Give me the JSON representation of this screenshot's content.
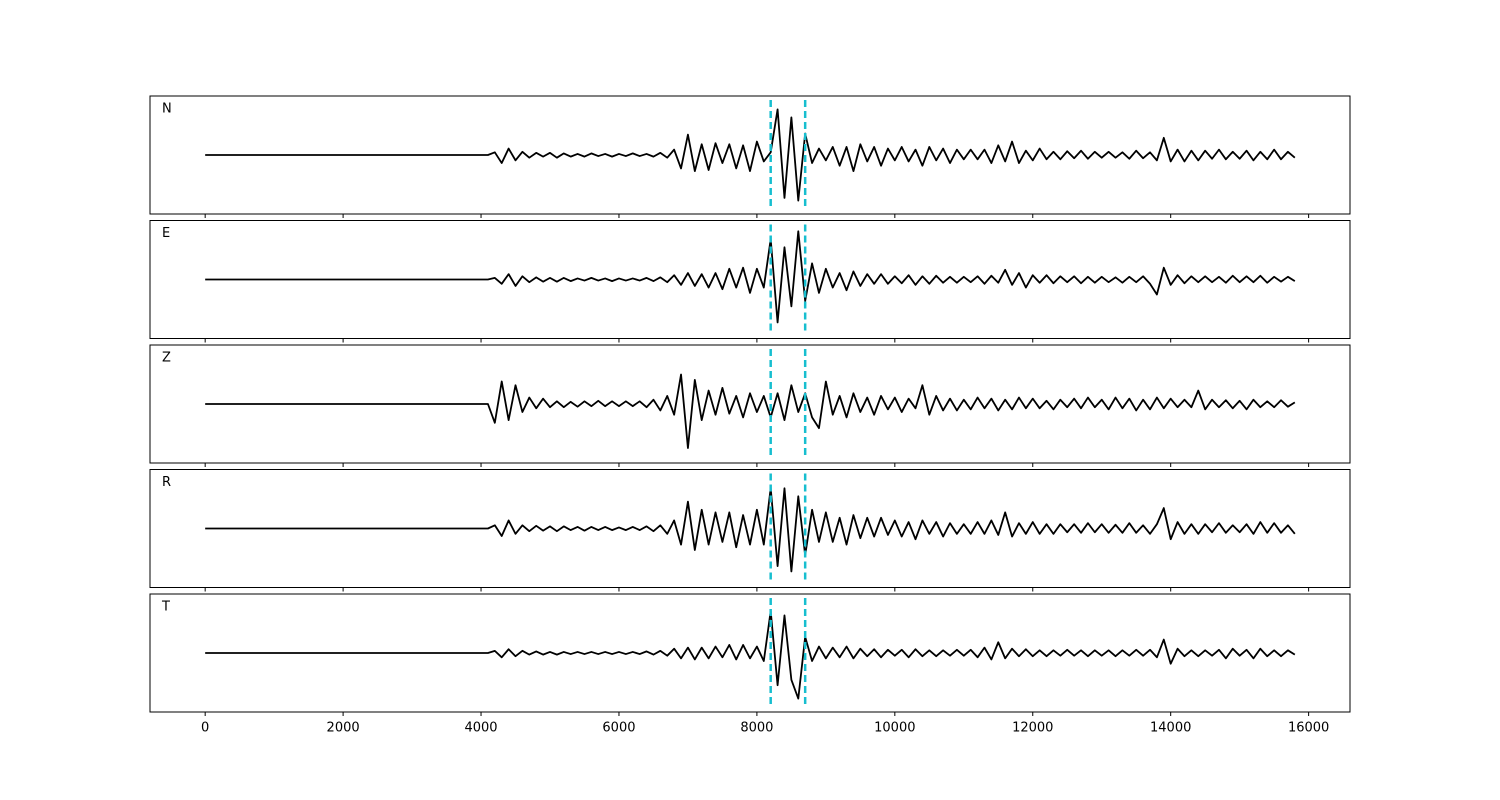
{
  "chart_data": {
    "type": "line",
    "layout": "stacked",
    "xlim": [
      -800,
      16600
    ],
    "xticks": [
      0,
      2000,
      4000,
      6000,
      8000,
      10000,
      12000,
      14000,
      16000
    ],
    "ylim": [
      -1.1,
      1.1
    ],
    "vlines": [
      8200,
      8700
    ],
    "vline_color": "#17becf",
    "x": [
      0,
      4000,
      4100,
      4200,
      4300,
      4400,
      4500,
      4600,
      4700,
      4800,
      4900,
      5000,
      5100,
      5200,
      5300,
      5400,
      5500,
      5600,
      5700,
      5800,
      5900,
      6000,
      6100,
      6200,
      6300,
      6400,
      6500,
      6600,
      6700,
      6800,
      6900,
      7000,
      7100,
      7200,
      7300,
      7400,
      7500,
      7600,
      7700,
      7800,
      7900,
      8000,
      8100,
      8200,
      8300,
      8400,
      8500,
      8600,
      8700,
      8800,
      8900,
      9000,
      9100,
      9200,
      9300,
      9400,
      9500,
      9600,
      9700,
      9800,
      9900,
      10000,
      10100,
      10200,
      10300,
      10400,
      10500,
      10600,
      10700,
      10800,
      10900,
      11000,
      11100,
      11200,
      11300,
      11400,
      11500,
      11600,
      11700,
      11800,
      11900,
      12000,
      12100,
      12200,
      12300,
      12400,
      12500,
      12600,
      12700,
      12800,
      12900,
      13000,
      13100,
      13200,
      13300,
      13400,
      13500,
      13600,
      13700,
      13800,
      13900,
      14000,
      14100,
      14200,
      14300,
      14400,
      14500,
      14600,
      14700,
      14800,
      14900,
      15000,
      15100,
      15200,
      15300,
      15400,
      15500,
      15600,
      15700,
      15800
    ],
    "series": [
      {
        "name": "N",
        "color": "#000000",
        "values": [
          0,
          0,
          0,
          0.05,
          -0.15,
          0.12,
          -0.1,
          0.06,
          -0.05,
          0.04,
          -0.03,
          0.04,
          -0.05,
          0.03,
          -0.03,
          0.02,
          -0.03,
          0.03,
          -0.02,
          0.02,
          -0.03,
          0.02,
          -0.02,
          0.03,
          -0.02,
          0.02,
          -0.03,
          0.04,
          -0.05,
          0.1,
          -0.25,
          0.38,
          -0.3,
          0.2,
          -0.28,
          0.22,
          -0.15,
          0.2,
          -0.25,
          0.18,
          -0.3,
          0.25,
          -0.12,
          0.05,
          0.85,
          -0.8,
          0.7,
          -0.85,
          0.4,
          -0.15,
          0.12,
          -0.1,
          0.15,
          -0.2,
          0.15,
          -0.3,
          0.2,
          -0.12,
          0.15,
          -0.2,
          0.12,
          -0.1,
          0.15,
          -0.12,
          0.1,
          -0.2,
          0.15,
          -0.1,
          0.12,
          -0.15,
          0.1,
          -0.08,
          0.1,
          -0.08,
          0.1,
          -0.15,
          0.18,
          -0.12,
          0.25,
          -0.15,
          0.08,
          -0.1,
          0.12,
          -0.08,
          0.06,
          -0.08,
          0.07,
          -0.06,
          0.08,
          -0.07,
          0.06,
          -0.05,
          0.06,
          -0.05,
          0.05,
          -0.07,
          0.08,
          -0.06,
          0.05,
          -0.1,
          0.32,
          -0.12,
          0.1,
          -0.12,
          0.08,
          -0.1,
          0.08,
          -0.07,
          0.1,
          -0.08,
          0.06,
          -0.07,
          0.08,
          -0.1,
          0.06,
          -0.08,
          0.1,
          -0.08,
          0.06,
          -0.05
        ]
      },
      {
        "name": "E",
        "color": "#000000",
        "values": [
          0,
          0,
          0,
          0.03,
          -0.08,
          0.1,
          -0.12,
          0.06,
          -0.05,
          0.04,
          -0.04,
          0.03,
          -0.04,
          0.03,
          -0.03,
          0.02,
          -0.02,
          0.03,
          -0.02,
          0.02,
          -0.03,
          0.02,
          -0.02,
          0.02,
          -0.02,
          0.03,
          -0.03,
          0.04,
          -0.05,
          0.08,
          -0.1,
          0.12,
          -0.12,
          0.1,
          -0.15,
          0.12,
          -0.18,
          0.2,
          -0.15,
          0.22,
          -0.25,
          0.2,
          -0.15,
          0.75,
          -0.8,
          0.6,
          -0.5,
          0.9,
          -0.4,
          0.3,
          -0.25,
          0.2,
          -0.15,
          0.12,
          -0.2,
          0.15,
          -0.12,
          0.1,
          -0.08,
          0.1,
          -0.08,
          0.06,
          -0.07,
          0.08,
          -0.1,
          0.06,
          -0.08,
          0.07,
          -0.06,
          0.05,
          -0.06,
          0.05,
          -0.05,
          0.06,
          -0.08,
          0.07,
          -0.06,
          0.18,
          -0.1,
          0.12,
          -0.15,
          0.08,
          -0.06,
          0.08,
          -0.07,
          0.06,
          -0.05,
          0.06,
          -0.07,
          0.05,
          -0.06,
          0.05,
          -0.05,
          0.04,
          -0.06,
          0.05,
          -0.05,
          0.06,
          -0.08,
          -0.28,
          0.22,
          -0.1,
          0.08,
          -0.07,
          0.06,
          -0.05,
          0.06,
          -0.05,
          0.05,
          -0.06,
          0.07,
          -0.05,
          0.06,
          -0.05,
          0.07,
          -0.06,
          0.05,
          -0.04,
          0.05,
          -0.03
        ]
      },
      {
        "name": "Z",
        "color": "#000000",
        "values": [
          0,
          0,
          0,
          -0.35,
          0.42,
          -0.3,
          0.35,
          -0.15,
          0.12,
          -0.08,
          0.1,
          -0.06,
          0.05,
          -0.06,
          0.04,
          -0.05,
          0.05,
          -0.04,
          0.06,
          -0.04,
          0.05,
          -0.04,
          0.05,
          -0.04,
          0.05,
          -0.06,
          0.08,
          -0.12,
          0.15,
          -0.2,
          0.55,
          -0.82,
          0.45,
          -0.3,
          0.25,
          -0.2,
          0.3,
          -0.18,
          0.15,
          -0.25,
          0.2,
          -0.15,
          0.15,
          -0.25,
          0.2,
          -0.3,
          0.35,
          -0.15,
          0.2,
          -0.25,
          -0.45,
          0.42,
          -0.2,
          0.15,
          -0.25,
          0.2,
          -0.15,
          0.12,
          -0.2,
          0.15,
          -0.1,
          0.12,
          -0.15,
          0.1,
          -0.08,
          0.35,
          -0.2,
          0.15,
          -0.12,
          0.1,
          -0.12,
          0.08,
          -0.1,
          0.12,
          -0.08,
          0.1,
          -0.12,
          0.08,
          -0.1,
          0.12,
          -0.08,
          0.1,
          -0.08,
          0.06,
          -0.1,
          0.08,
          -0.06,
          0.1,
          -0.08,
          0.12,
          -0.06,
          0.08,
          -0.1,
          0.12,
          -0.08,
          0.1,
          -0.12,
          0.08,
          -0.1,
          0.12,
          -0.08,
          0.1,
          -0.06,
          0.08,
          -0.06,
          0.25,
          -0.1,
          0.08,
          -0.06,
          0.07,
          -0.08,
          0.06,
          -0.1,
          0.08,
          -0.06,
          0.05,
          -0.06,
          0.07,
          -0.05,
          0.03
        ]
      },
      {
        "name": "R",
        "color": "#000000",
        "values": [
          0,
          0,
          0,
          0.06,
          -0.14,
          0.15,
          -0.1,
          0.06,
          -0.05,
          0.05,
          -0.04,
          0.04,
          -0.05,
          0.04,
          -0.03,
          0.03,
          -0.04,
          0.03,
          -0.03,
          0.03,
          -0.03,
          0.02,
          -0.03,
          0.03,
          -0.03,
          0.04,
          -0.05,
          0.06,
          -0.1,
          0.15,
          -0.3,
          0.5,
          -0.4,
          0.35,
          -0.3,
          0.3,
          -0.25,
          0.3,
          -0.35,
          0.25,
          -0.3,
          0.35,
          -0.3,
          0.75,
          -0.7,
          0.75,
          -0.8,
          0.6,
          -0.5,
          0.35,
          -0.25,
          0.3,
          -0.25,
          0.2,
          -0.3,
          0.25,
          -0.18,
          0.2,
          -0.15,
          0.2,
          -0.12,
          0.15,
          -0.15,
          0.12,
          -0.2,
          0.15,
          -0.1,
          0.12,
          -0.15,
          0.1,
          -0.1,
          0.08,
          -0.1,
          0.12,
          -0.1,
          0.15,
          -0.12,
          0.3,
          -0.15,
          0.1,
          -0.1,
          0.12,
          -0.1,
          0.08,
          -0.1,
          0.08,
          -0.07,
          0.08,
          -0.08,
          0.1,
          -0.07,
          0.08,
          -0.08,
          0.07,
          -0.08,
          0.1,
          -0.08,
          0.06,
          -0.1,
          0.08,
          0.38,
          -0.2,
          0.12,
          -0.1,
          0.08,
          -0.1,
          0.08,
          -0.07,
          0.1,
          -0.08,
          0.06,
          -0.07,
          0.08,
          -0.1,
          0.12,
          -0.08,
          0.1,
          -0.08,
          0.06,
          -0.1
        ]
      },
      {
        "name": "T",
        "color": "#000000",
        "values": [
          0,
          0,
          0,
          0.04,
          -0.08,
          0.07,
          -0.06,
          0.04,
          -0.03,
          0.03,
          -0.03,
          0.02,
          -0.03,
          0.02,
          -0.02,
          0.02,
          -0.02,
          0.02,
          -0.02,
          0.02,
          -0.02,
          0.02,
          -0.02,
          0.02,
          -0.02,
          0.03,
          -0.03,
          0.04,
          -0.05,
          0.08,
          -0.1,
          0.1,
          -0.12,
          0.1,
          -0.1,
          0.12,
          -0.08,
          0.15,
          -0.12,
          0.15,
          -0.1,
          0.12,
          -0.15,
          0.78,
          -0.6,
          0.7,
          -0.5,
          -0.85,
          0.3,
          -0.15,
          0.12,
          -0.1,
          0.1,
          -0.08,
          0.12,
          -0.1,
          0.08,
          -0.06,
          0.07,
          -0.08,
          0.06,
          -0.05,
          0.06,
          -0.08,
          0.07,
          -0.06,
          0.05,
          -0.06,
          0.05,
          -0.05,
          0.06,
          -0.05,
          0.06,
          -0.08,
          0.1,
          -0.12,
          0.2,
          -0.1,
          0.08,
          -0.06,
          0.07,
          -0.06,
          0.05,
          -0.06,
          0.05,
          -0.05,
          0.06,
          -0.05,
          0.05,
          -0.06,
          0.05,
          -0.05,
          0.05,
          -0.06,
          0.05,
          -0.05,
          0.06,
          -0.05,
          0.06,
          -0.08,
          0.25,
          -0.2,
          0.08,
          -0.06,
          0.05,
          -0.06,
          0.05,
          -0.05,
          0.06,
          -0.1,
          0.08,
          -0.05,
          0.06,
          -0.1,
          0.08,
          -0.06,
          0.05,
          -0.06,
          0.05,
          -0.03
        ]
      }
    ]
  }
}
